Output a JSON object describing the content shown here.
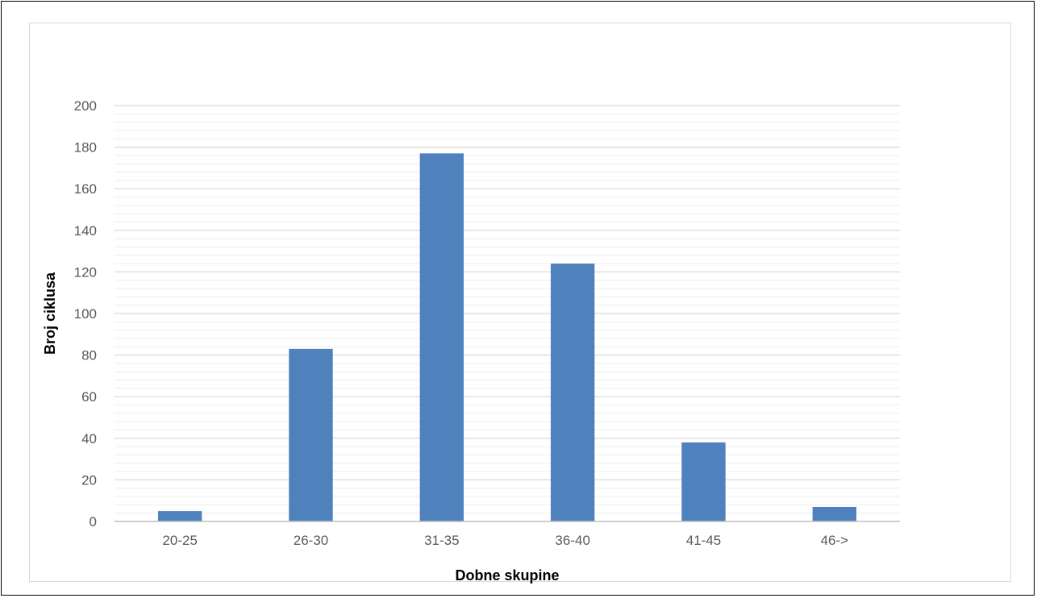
{
  "chart_data": {
    "type": "bar",
    "title": "",
    "xlabel": "Dobne skupine",
    "ylabel": "Broj ciklusa",
    "categories": [
      "20-25",
      "26-30",
      "31-35",
      "36-40",
      "41-45",
      "46->"
    ],
    "series": [
      {
        "values": [
          5,
          83,
          177,
          124,
          38,
          7
        ]
      }
    ],
    "ylim": [
      0,
      200
    ],
    "yticks": [
      0,
      20,
      40,
      60,
      80,
      100,
      120,
      140,
      160,
      180,
      200
    ],
    "minor_gridlines": true,
    "grid": true,
    "legend": "none",
    "colors": {
      "bar": "#4f81bd",
      "major_grid": "#d9d9d9",
      "minor_grid": "#eeeeee",
      "tick_text": "#595959"
    }
  }
}
